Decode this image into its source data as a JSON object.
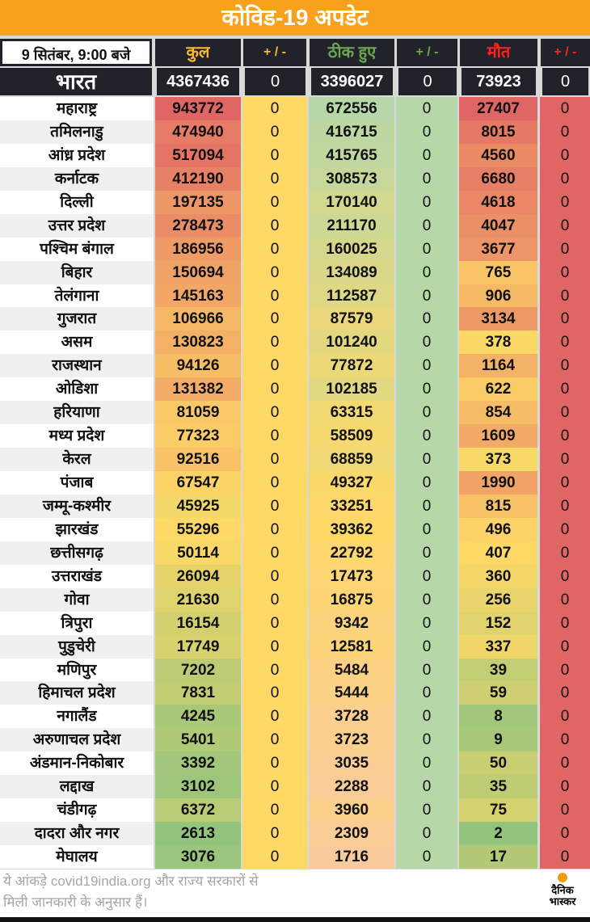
{
  "title": "कोविड-19 अपडेट",
  "header": {
    "date": "9 सितंबर, 9:00 बजे",
    "total": "कुल",
    "total_change": "+ / -",
    "recovered": "ठीक हुए",
    "recovered_change": "+ / -",
    "deaths": "मौत",
    "deaths_change": "+ / -"
  },
  "header_colors": {
    "total": "#f7b731",
    "recovered": "#6aa84f",
    "deaths": "#ff2020"
  },
  "india": {
    "name": "भारत",
    "total": "4367436",
    "total_change": "0",
    "recovered": "3396027",
    "recovered_change": "0",
    "deaths": "73923",
    "deaths_change": "0"
  },
  "states": [
    {
      "name": "महाराष्ट्र",
      "total": "943772",
      "tc": "0",
      "recovered": "672556",
      "rc": "0",
      "deaths": "27407",
      "dc": "0"
    },
    {
      "name": "तमिलनाडु",
      "total": "474940",
      "tc": "0",
      "recovered": "416715",
      "rc": "0",
      "deaths": "8015",
      "dc": "0"
    },
    {
      "name": "आंध्र प्रदेश",
      "total": "517094",
      "tc": "0",
      "recovered": "415765",
      "rc": "0",
      "deaths": "4560",
      "dc": "0"
    },
    {
      "name": "कर्नाटक",
      "total": "412190",
      "tc": "0",
      "recovered": "308573",
      "rc": "0",
      "deaths": "6680",
      "dc": "0"
    },
    {
      "name": "दिल्ली",
      "total": "197135",
      "tc": "0",
      "recovered": "170140",
      "rc": "0",
      "deaths": "4618",
      "dc": "0"
    },
    {
      "name": "उत्तर प्रदेश",
      "total": "278473",
      "tc": "0",
      "recovered": "211170",
      "rc": "0",
      "deaths": "4047",
      "dc": "0"
    },
    {
      "name": "पश्चिम बंगाल",
      "total": "186956",
      "tc": "0",
      "recovered": "160025",
      "rc": "0",
      "deaths": "3677",
      "dc": "0"
    },
    {
      "name": "बिहार",
      "total": "150694",
      "tc": "0",
      "recovered": "134089",
      "rc": "0",
      "deaths": "765",
      "dc": "0"
    },
    {
      "name": "तेलंगाना",
      "total": "145163",
      "tc": "0",
      "recovered": "112587",
      "rc": "0",
      "deaths": "906",
      "dc": "0"
    },
    {
      "name": "गुजरात",
      "total": "106966",
      "tc": "0",
      "recovered": "87579",
      "rc": "0",
      "deaths": "3134",
      "dc": "0"
    },
    {
      "name": "असम",
      "total": "130823",
      "tc": "0",
      "recovered": "101240",
      "rc": "0",
      "deaths": "378",
      "dc": "0"
    },
    {
      "name": "राजस्थान",
      "total": "94126",
      "tc": "0",
      "recovered": "77872",
      "rc": "0",
      "deaths": "1164",
      "dc": "0"
    },
    {
      "name": "ओडिशा",
      "total": "131382",
      "tc": "0",
      "recovered": "102185",
      "rc": "0",
      "deaths": "622",
      "dc": "0"
    },
    {
      "name": "हरियाणा",
      "total": "81059",
      "tc": "0",
      "recovered": "63315",
      "rc": "0",
      "deaths": "854",
      "dc": "0"
    },
    {
      "name": "मध्य प्रदेश",
      "total": "77323",
      "tc": "0",
      "recovered": "58509",
      "rc": "0",
      "deaths": "1609",
      "dc": "0"
    },
    {
      "name": "केरल",
      "total": "92516",
      "tc": "0",
      "recovered": "68859",
      "rc": "0",
      "deaths": "373",
      "dc": "0"
    },
    {
      "name": "पंजाब",
      "total": "67547",
      "tc": "0",
      "recovered": "49327",
      "rc": "0",
      "deaths": "1990",
      "dc": "0"
    },
    {
      "name": "जम्मू-कश्मीर",
      "total": "45925",
      "tc": "0",
      "recovered": "33251",
      "rc": "0",
      "deaths": "815",
      "dc": "0"
    },
    {
      "name": "झारखंड",
      "total": "55296",
      "tc": "0",
      "recovered": "39362",
      "rc": "0",
      "deaths": "496",
      "dc": "0"
    },
    {
      "name": "छत्तीसगढ़",
      "total": "50114",
      "tc": "0",
      "recovered": "22792",
      "rc": "0",
      "deaths": "407",
      "dc": "0"
    },
    {
      "name": "उत्तराखंड",
      "total": "26094",
      "tc": "0",
      "recovered": "17473",
      "rc": "0",
      "deaths": "360",
      "dc": "0"
    },
    {
      "name": "गोवा",
      "total": "21630",
      "tc": "0",
      "recovered": "16875",
      "rc": "0",
      "deaths": "256",
      "dc": "0"
    },
    {
      "name": "त्रिपुरा",
      "total": "16154",
      "tc": "0",
      "recovered": "9342",
      "rc": "0",
      "deaths": "152",
      "dc": "0"
    },
    {
      "name": "पुडुचेरी",
      "total": "17749",
      "tc": "0",
      "recovered": "12581",
      "rc": "0",
      "deaths": "337",
      "dc": "0"
    },
    {
      "name": "मणिपुर",
      "total": "7202",
      "tc": "0",
      "recovered": "5484",
      "rc": "0",
      "deaths": "39",
      "dc": "0"
    },
    {
      "name": "हिमाचल प्रदेश",
      "total": "7831",
      "tc": "0",
      "recovered": "5444",
      "rc": "0",
      "deaths": "59",
      "dc": "0"
    },
    {
      "name": "नगालैंड",
      "total": "4245",
      "tc": "0",
      "recovered": "3728",
      "rc": "0",
      "deaths": "8",
      "dc": "0"
    },
    {
      "name": "अरुणाचल प्रदेश",
      "total": "5401",
      "tc": "0",
      "recovered": "3723",
      "rc": "0",
      "deaths": "9",
      "dc": "0"
    },
    {
      "name": "अंडमान-निकोबार",
      "total": "3392",
      "tc": "0",
      "recovered": "3035",
      "rc": "0",
      "deaths": "50",
      "dc": "0"
    },
    {
      "name": "लद्दाख",
      "total": "3102",
      "tc": "0",
      "recovered": "2288",
      "rc": "0",
      "deaths": "35",
      "dc": "0"
    },
    {
      "name": "चंडीगढ़",
      "total": "6372",
      "tc": "0",
      "recovered": "3960",
      "rc": "0",
      "deaths": "75",
      "dc": "0"
    },
    {
      "name": "दादरा और नगर",
      "total": "2613",
      "tc": "0",
      "recovered": "2309",
      "rc": "0",
      "deaths": "2",
      "dc": "0"
    },
    {
      "name": "मेघालय",
      "total": "3076",
      "tc": "0",
      "recovered": "1716",
      "rc": "0",
      "deaths": "17",
      "dc": "0"
    }
  ],
  "footer": {
    "line1": "ये आंकड़े covid19india.org और राज्य सरकारों से",
    "line2": "मिली जानकारी के अनुसार हैं।",
    "logo_top": "दैनिक",
    "logo_bottom": "भास्कर"
  },
  "colors": {
    "title_bg": "#f7a11d",
    "change_total": "#ffd966",
    "change_recovered": "#b6d7a8",
    "change_deaths": "#e06666",
    "high": "#e06666",
    "mid": "#ffd966",
    "low": "#93c47d",
    "rec_high": "#b6d7a8",
    "rec_low": "#f9cb9c"
  }
}
